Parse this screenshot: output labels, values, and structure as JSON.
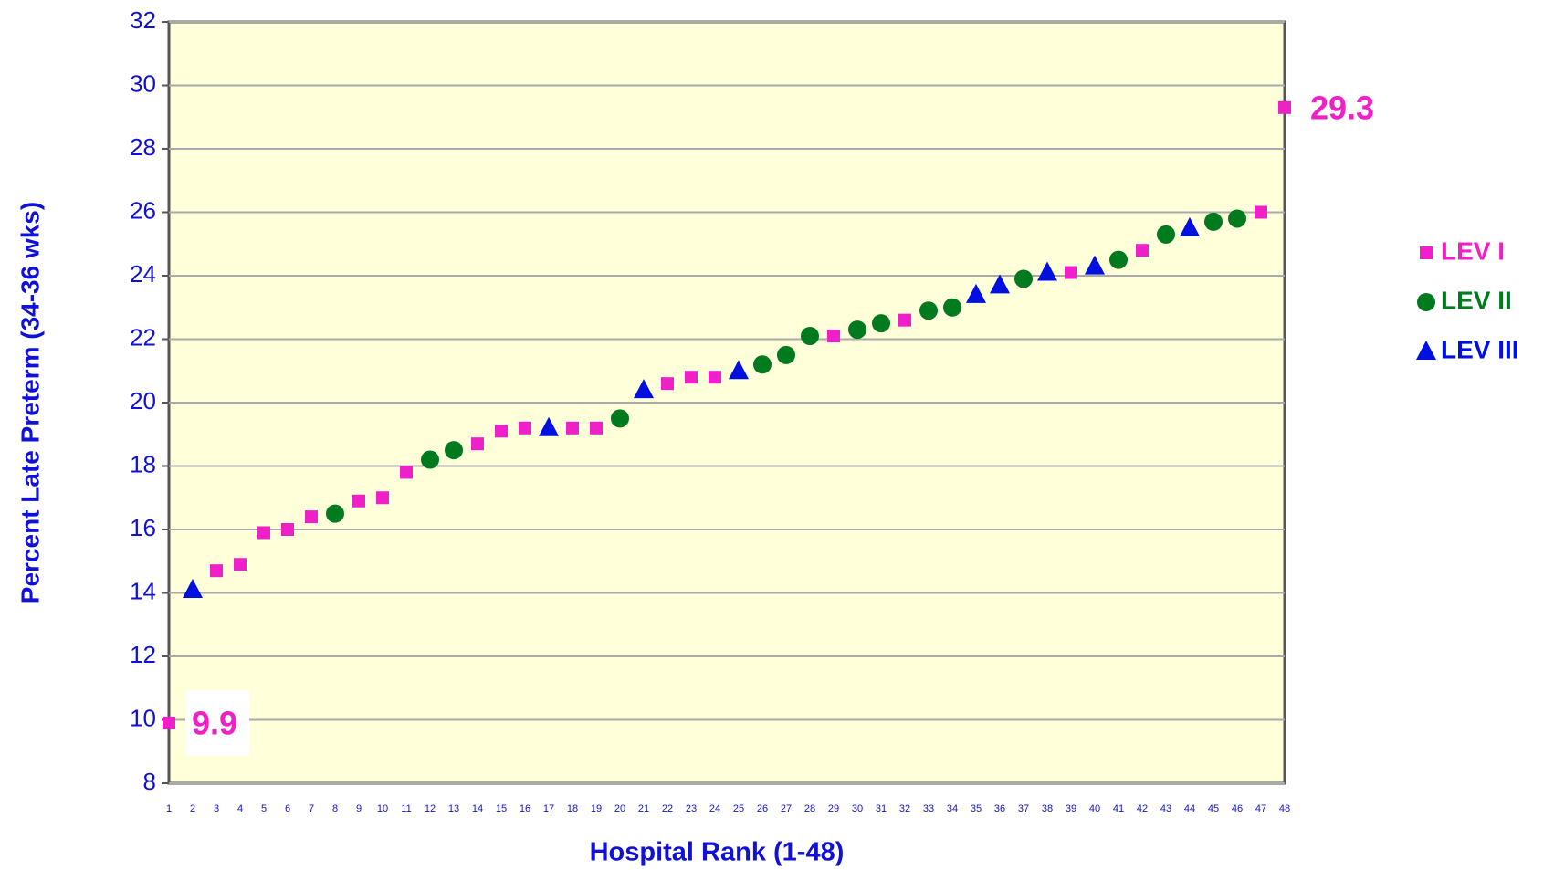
{
  "chart_data": {
    "type": "scatter",
    "x_label": "Hospital Rank (1-48)",
    "y_label": "Percent Late Preterm (34-36 wks)",
    "categories": [
      "1",
      "2",
      "3",
      "4",
      "5",
      "6",
      "7",
      "8",
      "9",
      "10",
      "11",
      "12",
      "13",
      "14",
      "15",
      "16",
      "17",
      "18",
      "19",
      "20",
      "21",
      "22",
      "23",
      "24",
      "25",
      "26",
      "27",
      "28",
      "29",
      "30",
      "31",
      "32",
      "33",
      "34",
      "35",
      "36",
      "37",
      "38",
      "39",
      "40",
      "41",
      "42",
      "43",
      "44",
      "45",
      "46",
      "47",
      "48"
    ],
    "series": [
      {
        "name": "LEV I",
        "color": "#f020c8",
        "marker": "square",
        "values": [
          9.9,
          null,
          14.7,
          14.9,
          15.9,
          16.0,
          16.4,
          null,
          16.9,
          17.0,
          17.8,
          null,
          null,
          18.7,
          19.1,
          19.2,
          null,
          19.2,
          19.2,
          null,
          null,
          20.6,
          20.8,
          20.8,
          null,
          null,
          null,
          null,
          22.1,
          null,
          null,
          22.6,
          null,
          null,
          null,
          null,
          null,
          null,
          24.1,
          null,
          null,
          24.8,
          null,
          null,
          null,
          null,
          26.0,
          29.3
        ]
      },
      {
        "name": "LEV II",
        "color": "#007a1e",
        "marker": "circle",
        "values": [
          null,
          null,
          null,
          null,
          null,
          null,
          null,
          16.5,
          null,
          null,
          null,
          18.2,
          18.5,
          null,
          null,
          null,
          null,
          null,
          null,
          19.5,
          null,
          null,
          null,
          null,
          null,
          21.2,
          21.5,
          22.1,
          null,
          22.3,
          22.5,
          null,
          22.9,
          23.0,
          null,
          null,
          23.9,
          null,
          null,
          null,
          24.5,
          null,
          25.3,
          null,
          25.7,
          25.8,
          null,
          null
        ]
      },
      {
        "name": "LEV III",
        "color": "#0010e0",
        "marker": "triangle",
        "values": [
          null,
          14.1,
          null,
          null,
          null,
          null,
          null,
          null,
          null,
          null,
          null,
          null,
          null,
          null,
          null,
          null,
          19.2,
          null,
          null,
          null,
          20.4,
          null,
          null,
          null,
          21.0,
          null,
          null,
          null,
          null,
          null,
          null,
          null,
          null,
          null,
          23.4,
          23.7,
          null,
          24.1,
          null,
          24.3,
          null,
          null,
          null,
          25.5,
          null,
          null,
          null,
          null
        ]
      }
    ],
    "ylim": [
      8,
      32
    ],
    "yticks": [
      8,
      10,
      12,
      14,
      16,
      18,
      20,
      22,
      24,
      26,
      28,
      30,
      32
    ],
    "grid": true,
    "legend": "right"
  }
}
